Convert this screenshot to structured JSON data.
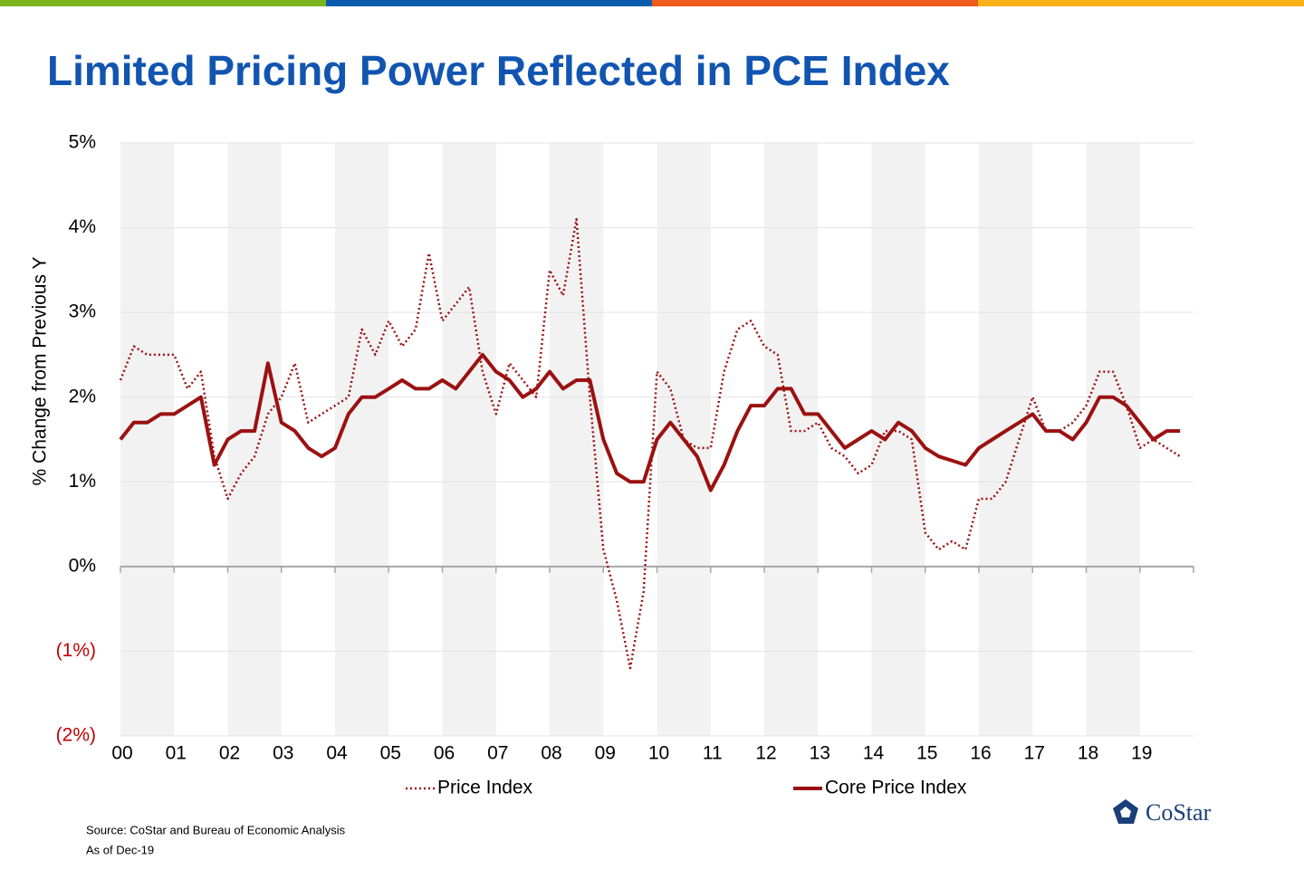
{
  "chart_data": {
    "type": "line",
    "title": "Limited Pricing Power Reflected in PCE Index",
    "y_label": "% Change from Previous Y",
    "x": [
      2000,
      2000.25,
      2000.5,
      2000.75,
      2001,
      2001.25,
      2001.5,
      2001.75,
      2002,
      2002.25,
      2002.5,
      2002.75,
      2003,
      2003.25,
      2003.5,
      2003.75,
      2004,
      2004.25,
      2004.5,
      2004.75,
      2005,
      2005.25,
      2005.5,
      2005.75,
      2006,
      2006.25,
      2006.5,
      2006.75,
      2007,
      2007.25,
      2007.5,
      2007.75,
      2008,
      2008.25,
      2008.5,
      2008.75,
      2009,
      2009.25,
      2009.5,
      2009.75,
      2010,
      2010.25,
      2010.5,
      2010.75,
      2011,
      2011.25,
      2011.5,
      2011.75,
      2012,
      2012.25,
      2012.5,
      2012.75,
      2013,
      2013.25,
      2013.5,
      2013.75,
      2014,
      2014.25,
      2014.5,
      2014.75,
      2015,
      2015.25,
      2015.5,
      2015.75,
      2016,
      2016.25,
      2016.5,
      2016.75,
      2017,
      2017.25,
      2017.5,
      2017.75,
      2018,
      2018.25,
      2018.5,
      2018.75,
      2019,
      2019.25,
      2019.5,
      2019.75
    ],
    "series": [
      {
        "name": "Price Index",
        "color": "#9b1111",
        "style": "dotted",
        "values": [
          2.2,
          2.6,
          2.5,
          2.5,
          2.5,
          2.1,
          2.3,
          1.3,
          0.8,
          1.1,
          1.3,
          1.8,
          2.0,
          2.4,
          1.7,
          1.8,
          1.9,
          2.0,
          2.8,
          2.5,
          2.9,
          2.6,
          2.8,
          3.7,
          2.9,
          3.1,
          3.3,
          2.3,
          1.8,
          2.4,
          2.2,
          2.0,
          3.5,
          3.2,
          4.1,
          2.0,
          0.2,
          -0.4,
          -1.2,
          -0.3,
          2.3,
          2.1,
          1.5,
          1.4,
          1.4,
          2.3,
          2.8,
          2.9,
          2.6,
          2.5,
          1.6,
          1.6,
          1.7,
          1.4,
          1.3,
          1.1,
          1.2,
          1.6,
          1.6,
          1.5,
          0.4,
          0.2,
          0.3,
          0.2,
          0.8,
          0.8,
          1.0,
          1.5,
          2.0,
          1.6,
          1.6,
          1.7,
          1.9,
          2.3,
          2.3,
          1.9,
          1.4,
          1.5,
          1.4,
          1.3
        ]
      },
      {
        "name": "Core Price Index",
        "color": "#9b1111",
        "style": "solid",
        "values": [
          1.5,
          1.7,
          1.7,
          1.8,
          1.8,
          1.9,
          2.0,
          1.2,
          1.5,
          1.6,
          1.6,
          2.4,
          1.7,
          1.6,
          1.4,
          1.3,
          1.4,
          1.8,
          2.0,
          2.0,
          2.1,
          2.2,
          2.1,
          2.1,
          2.2,
          2.1,
          2.3,
          2.5,
          2.3,
          2.2,
          2.0,
          2.1,
          2.3,
          2.1,
          2.2,
          2.2,
          1.5,
          1.1,
          1.0,
          1.0,
          1.5,
          1.7,
          1.5,
          1.3,
          0.9,
          1.2,
          1.6,
          1.9,
          1.9,
          2.1,
          2.1,
          1.8,
          1.8,
          1.6,
          1.4,
          1.5,
          1.6,
          1.5,
          1.7,
          1.6,
          1.4,
          1.3,
          1.25,
          1.2,
          1.4,
          1.5,
          1.6,
          1.7,
          1.8,
          1.6,
          1.6,
          1.5,
          1.7,
          2.0,
          2.0,
          1.9,
          1.7,
          1.5,
          1.6,
          1.6
        ]
      }
    ],
    "xlim": [
      2000,
      2020
    ],
    "xticks": [
      {
        "value": 2000,
        "label": "00"
      },
      {
        "value": 2001,
        "label": "01"
      },
      {
        "value": 2002,
        "label": "02"
      },
      {
        "value": 2003,
        "label": "03"
      },
      {
        "value": 2004,
        "label": "04"
      },
      {
        "value": 2005,
        "label": "05"
      },
      {
        "value": 2006,
        "label": "06"
      },
      {
        "value": 2007,
        "label": "07"
      },
      {
        "value": 2008,
        "label": "08"
      },
      {
        "value": 2009,
        "label": "09"
      },
      {
        "value": 2010,
        "label": "10"
      },
      {
        "value": 2011,
        "label": "11"
      },
      {
        "value": 2012,
        "label": "12"
      },
      {
        "value": 2013,
        "label": "13"
      },
      {
        "value": 2014,
        "label": "14"
      },
      {
        "value": 2015,
        "label": "15"
      },
      {
        "value": 2016,
        "label": "16"
      },
      {
        "value": 2017,
        "label": "17"
      },
      {
        "value": 2018,
        "label": "18"
      },
      {
        "value": 2019,
        "label": "19"
      }
    ],
    "ylim": [
      -2,
      5
    ],
    "yticks": [
      {
        "value": 5,
        "label": "5%"
      },
      {
        "value": 4,
        "label": "4%"
      },
      {
        "value": 3,
        "label": "3%"
      },
      {
        "value": 2,
        "label": "2%"
      },
      {
        "value": 1,
        "label": "1%"
      },
      {
        "value": 0,
        "label": "0%"
      },
      {
        "value": -1,
        "label": "(1%)"
      },
      {
        "value": -2,
        "label": "(2%)"
      }
    ],
    "grid": true,
    "legend": "bottom",
    "source": "Source: CoStar and Bureau of Economic Analysis",
    "note": "As of Dec-19",
    "logo": "CoStar"
  }
}
